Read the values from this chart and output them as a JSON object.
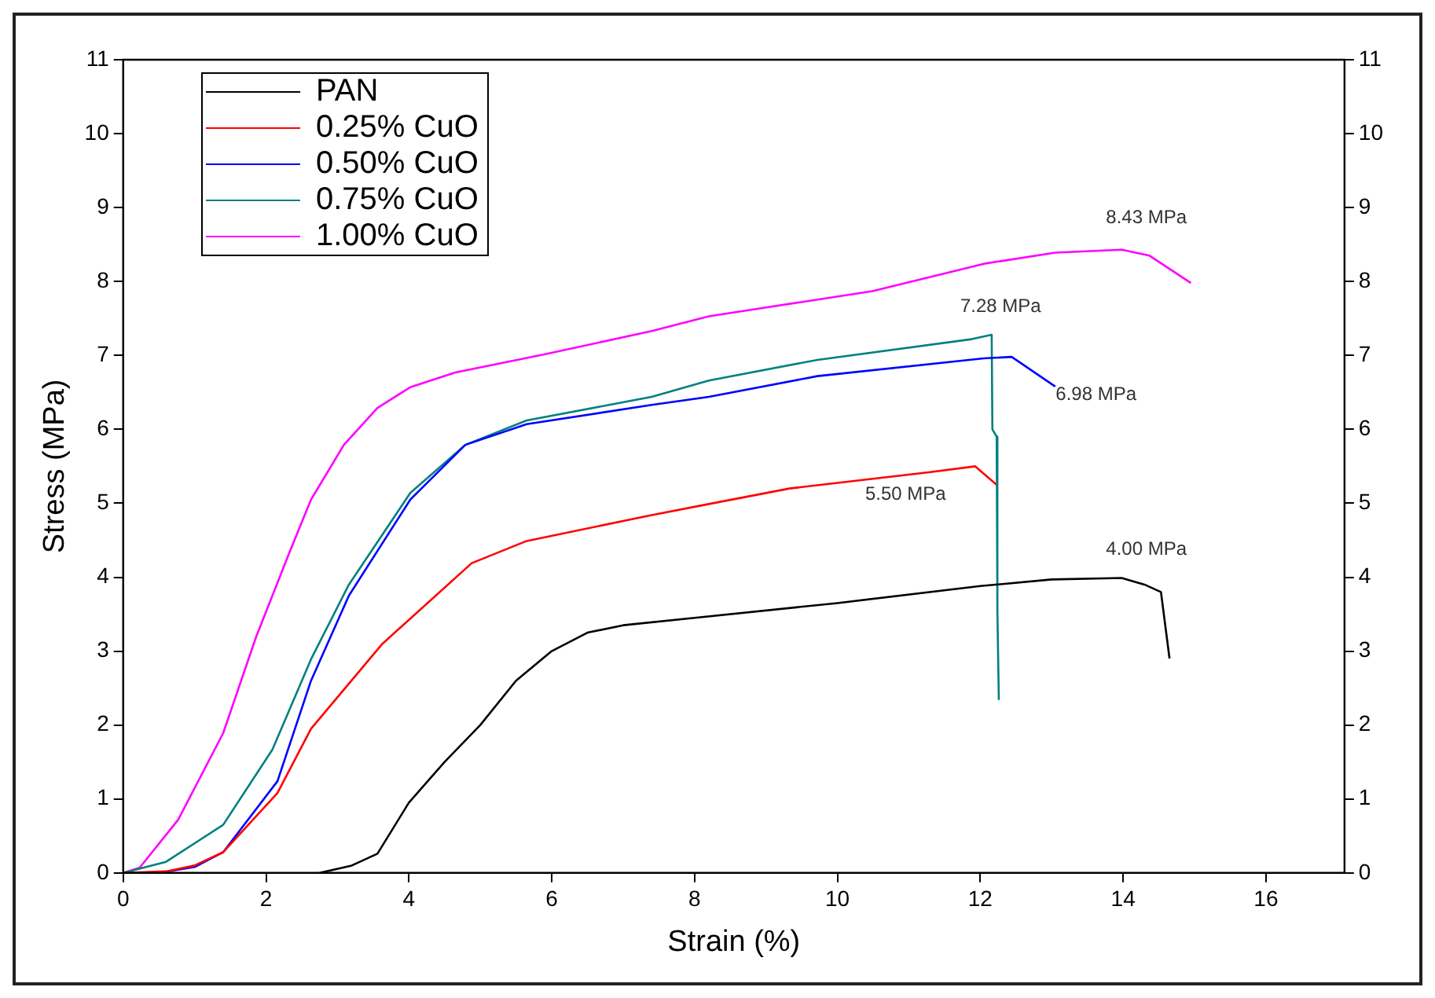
{
  "chart_data": {
    "type": "line",
    "xlabel": "Strain (%)",
    "ylabel": "Stress (MPa)",
    "xlim": [
      0,
      17.1
    ],
    "xticks": [
      0,
      2,
      4,
      6,
      8,
      10,
      12,
      14,
      16
    ],
    "ylim": [
      0,
      11
    ],
    "yticks": [
      0,
      1,
      2,
      3,
      4,
      5,
      6,
      7,
      8,
      9,
      10,
      11
    ],
    "y2lim": [
      0,
      11
    ],
    "y2ticks": [
      0,
      1,
      2,
      3,
      4,
      5,
      6,
      7,
      8,
      9,
      10,
      11
    ],
    "grid": false,
    "legend": "top left",
    "marker": "none",
    "line_style": "solid",
    "series": [
      {
        "name": "PAN",
        "color": "#000000",
        "x": [
          2.75,
          3.2,
          3.56,
          4.0,
          4.5,
          5.0,
          5.5,
          6.0,
          6.5,
          7.0,
          8.0,
          10.0,
          12.0,
          13.0,
          13.98,
          14.3,
          14.53,
          14.65
        ],
        "values": [
          0,
          0.1,
          0.26,
          0.95,
          1.5,
          2.0,
          2.6,
          3.0,
          3.25,
          3.35,
          3.45,
          3.65,
          3.88,
          3.97,
          3.99,
          3.9,
          3.8,
          2.9
        ]
      },
      {
        "name": "0.25% CuO",
        "color": "#ff0000",
        "x": [
          0,
          0.6,
          1.0,
          1.4,
          2.16,
          2.63,
          3.63,
          4.88,
          5.65,
          7.4,
          8.2,
          9.33,
          11.28,
          11.93,
          12.23
        ],
        "values": [
          0,
          0.02,
          0.1,
          0.28,
          1.08,
          1.95,
          3.1,
          4.19,
          4.49,
          4.84,
          4.99,
          5.2,
          5.42,
          5.5,
          5.25
        ]
      },
      {
        "name": "0.50% CuO",
        "color": "#0000ff",
        "x": [
          0,
          0.5,
          1.0,
          1.4,
          2.16,
          2.63,
          3.16,
          4.02,
          4.79,
          5.65,
          7.4,
          8.2,
          9.72,
          12.05,
          12.44,
          13.05
        ],
        "values": [
          0,
          0,
          0.08,
          0.28,
          1.24,
          2.6,
          3.75,
          5.05,
          5.79,
          6.07,
          6.33,
          6.44,
          6.72,
          6.96,
          6.98,
          6.58
        ]
      },
      {
        "name": "0.75% CuO",
        "color": "#008080",
        "x": [
          0,
          0.6,
          1.4,
          2.09,
          2.63,
          3.16,
          4.02,
          4.79,
          5.65,
          7.4,
          8.2,
          9.72,
          11.88,
          12.16,
          12.17,
          12.23,
          12.24,
          12.26
        ],
        "values": [
          0,
          0.15,
          0.65,
          1.67,
          2.89,
          3.9,
          5.14,
          5.79,
          6.12,
          6.44,
          6.66,
          6.94,
          7.22,
          7.28,
          6.0,
          5.9,
          3.54,
          2.34
        ]
      },
      {
        "name": "1.00% CuO",
        "color": "#ff00ff",
        "x": [
          0,
          0.23,
          0.77,
          1.4,
          1.86,
          2.33,
          2.63,
          3.09,
          3.56,
          4.02,
          4.65,
          5.88,
          7.4,
          8.2,
          8.95,
          10.49,
          12.05,
          13.05,
          13.98,
          14.37,
          14.95
        ],
        "values": [
          0,
          0.07,
          0.72,
          1.89,
          3.19,
          4.34,
          5.05,
          5.79,
          6.29,
          6.57,
          6.77,
          7.01,
          7.33,
          7.53,
          7.64,
          7.87,
          8.24,
          8.39,
          8.43,
          8.35,
          7.98
        ]
      }
    ],
    "annotations": [
      {
        "text": "8.43 MPa",
        "x": 13.98,
        "y": 8.43
      },
      {
        "text": "7.28 MPa",
        "x": 12.16,
        "y": 7.28
      },
      {
        "text": "6.98 MPa",
        "x": 12.44,
        "y": 6.98
      },
      {
        "text": "5.50 MPa",
        "x": 11.93,
        "y": 5.5
      },
      {
        "text": "4.00 MPa",
        "x": 13.98,
        "y": 3.99
      }
    ]
  }
}
